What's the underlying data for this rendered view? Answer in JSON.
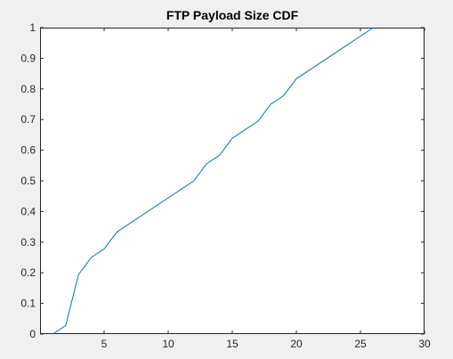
{
  "chart_data": {
    "type": "line",
    "title": "FTP Payload Size CDF",
    "xlabel": "",
    "ylabel": "",
    "xlim": [
      0,
      30
    ],
    "ylim": [
      0,
      1
    ],
    "xticks": [
      5,
      10,
      15,
      20,
      25,
      30
    ],
    "yticks": [
      0,
      0.1,
      0.2,
      0.3,
      0.4,
      0.5,
      0.6,
      0.7,
      0.8,
      0.9,
      1
    ],
    "xtick_labels": [
      "5",
      "10",
      "15",
      "20",
      "25",
      "30"
    ],
    "ytick_labels": [
      "0",
      "0.1",
      "0.2",
      "0.3",
      "0.4",
      "0.5",
      "0.6",
      "0.7",
      "0.8",
      "0.9",
      "1"
    ],
    "grid": false,
    "legend": "none",
    "series": [
      {
        "x": [
          1,
          2,
          3,
          4,
          5,
          6,
          12,
          13,
          14,
          15,
          16,
          17,
          18,
          19,
          20,
          26
        ],
        "y": [
          0,
          0.028,
          0.194,
          0.25,
          0.278,
          0.333,
          0.5,
          0.556,
          0.583,
          0.639,
          0.667,
          0.694,
          0.75,
          0.778,
          0.833,
          1.0
        ],
        "color": "#0072bd"
      }
    ],
    "colors": {
      "figure_bg": "#f0f0f0",
      "axes_bg": "#ffffff",
      "axis": "#262626",
      "line": "#0072bd"
    }
  }
}
